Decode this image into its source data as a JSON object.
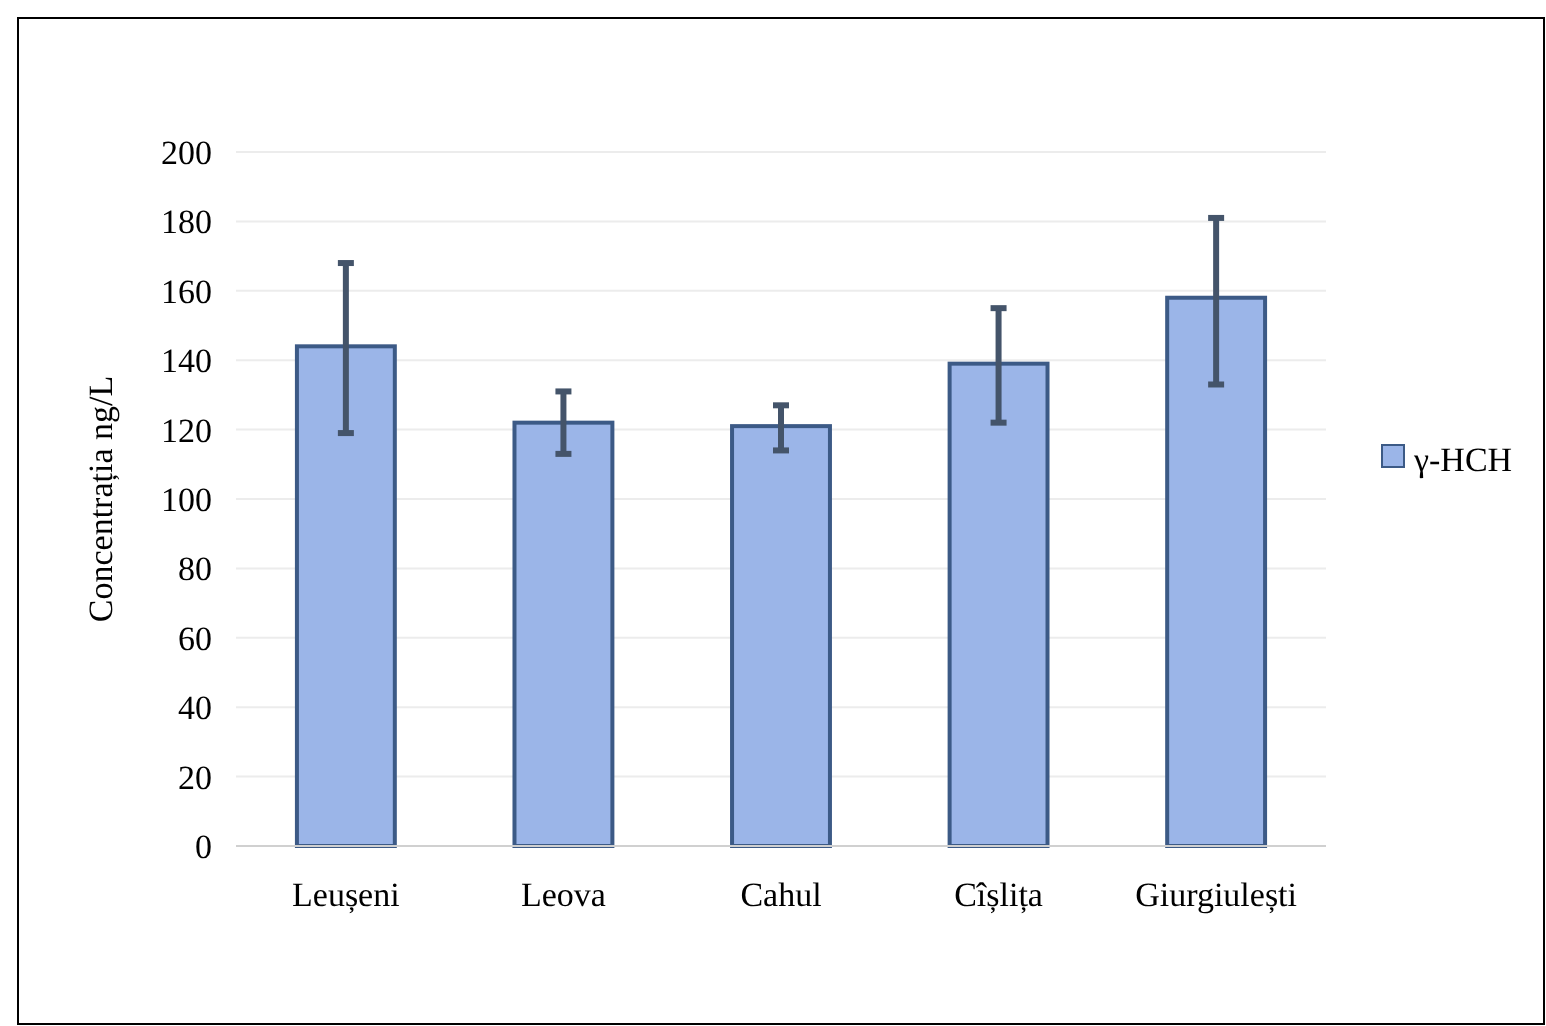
{
  "chart_data": {
    "type": "bar",
    "ylabel": "Concentrația ng/L",
    "categories": [
      "Leușeni",
      "Leova",
      "Cahul",
      "Cîșlița",
      "Giurgiulești"
    ],
    "series": [
      {
        "name": "γ-HCH",
        "color": "#9bb5e8",
        "values": [
          144,
          122,
          121,
          139,
          158
        ],
        "errors": [
          [
            119,
            168
          ],
          [
            113,
            131
          ],
          [
            114,
            127
          ],
          [
            122,
            155
          ],
          [
            133,
            181
          ]
        ]
      }
    ],
    "ylim": [
      0,
      200
    ],
    "yticks": [
      0,
      20,
      40,
      60,
      80,
      100,
      120,
      140,
      160,
      180,
      200
    ],
    "grid": "y",
    "legend": "right"
  }
}
